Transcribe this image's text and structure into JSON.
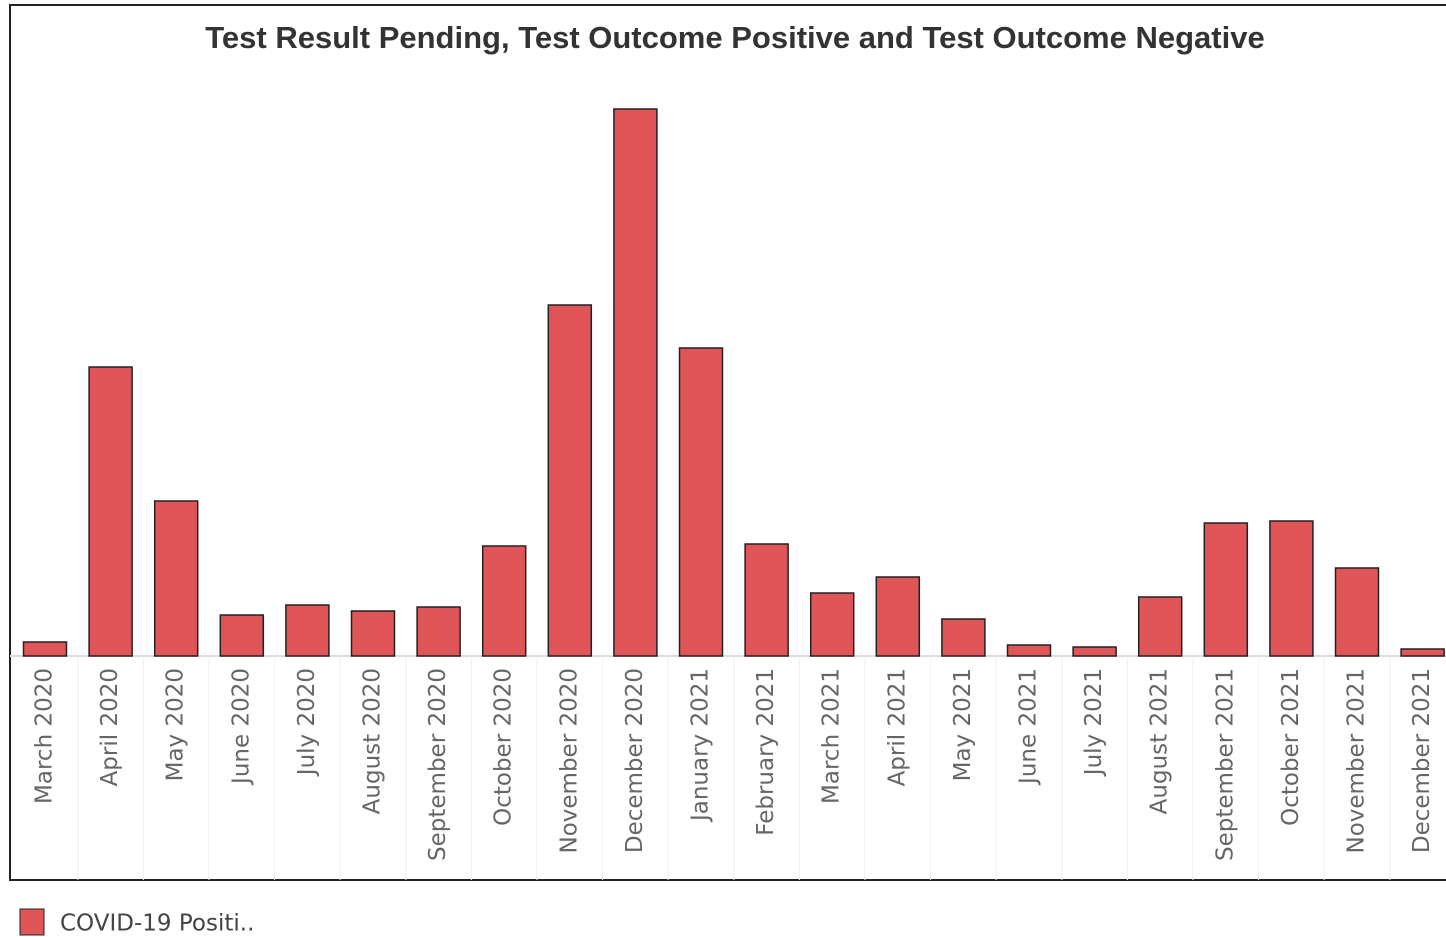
{
  "chart_data": {
    "type": "bar",
    "title": "Test Result Pending, Test Outcome Positive and Test Outcome Negative",
    "categories": [
      "March 2020",
      "April 2020",
      "May 2020",
      "June 2020",
      "July 2020",
      "August 2020",
      "September 2020",
      "October 2020",
      "November 2020",
      "December 2020",
      "January 2021",
      "February 2021",
      "March 2021",
      "April 2021",
      "May 2021",
      "June 2021",
      "July 2021",
      "August 2021",
      "September 2021",
      "October 2021",
      "November 2021",
      "December 2021"
    ],
    "series": [
      {
        "name": "COVID-19 Positi..",
        "color": "#e05558",
        "values": [
          14,
          289,
          155,
          41,
          51,
          45,
          49,
          110,
          351,
          547,
          308,
          112,
          63,
          79,
          37,
          11,
          9,
          59,
          133,
          135,
          88,
          7
        ]
      }
    ],
    "ylim": [
      0,
      560
    ]
  }
}
